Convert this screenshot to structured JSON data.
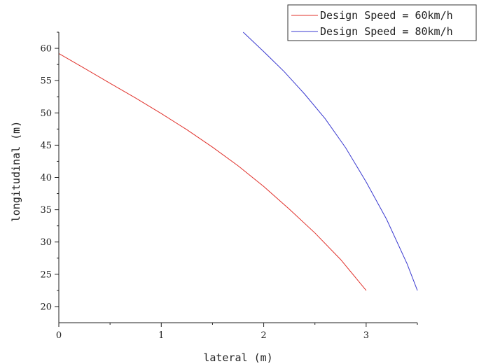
{
  "chart_data": {
    "type": "line",
    "xlabel": "lateral (m)",
    "ylabel": "longitudinal (m)",
    "xlim": [
      0,
      3.5
    ],
    "ylim": [
      17.5,
      62.5
    ],
    "x_ticks": [
      0,
      1,
      2,
      3
    ],
    "y_ticks": [
      20,
      25,
      30,
      35,
      40,
      45,
      50,
      55,
      60
    ],
    "grid": false,
    "legend_position": "top-right",
    "series": [
      {
        "name": "Design Speed = 60km/h",
        "color": "#e0302a",
        "x": [
          0,
          0.25,
          0.5,
          0.75,
          1.0,
          1.25,
          1.5,
          1.75,
          2.0,
          2.25,
          2.5,
          2.75,
          3.0
        ],
        "y": [
          59.2,
          56.9,
          54.6,
          52.3,
          49.9,
          47.4,
          44.7,
          41.8,
          38.6,
          35.1,
          31.4,
          27.3,
          22.5
        ]
      },
      {
        "name": "Design Speed = 80km/h",
        "color": "#3a3ad0",
        "x": [
          1.8,
          2.0,
          2.2,
          2.4,
          2.6,
          2.8,
          3.0,
          3.2,
          3.4,
          3.5
        ],
        "y": [
          62.5,
          59.5,
          56.4,
          52.9,
          49.1,
          44.6,
          39.3,
          33.5,
          26.6,
          22.5
        ]
      }
    ]
  }
}
